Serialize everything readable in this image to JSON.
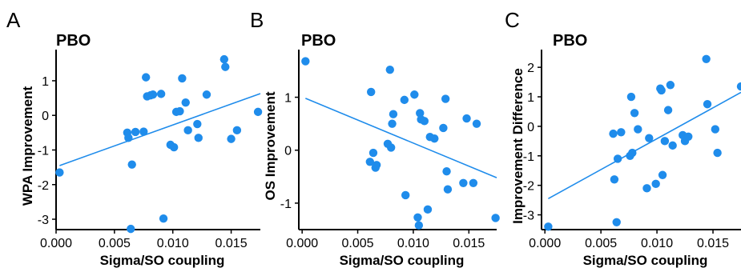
{
  "chart_data": [
    {
      "type": "scatter",
      "panel_label": "A",
      "title": "PBO",
      "xlabel": "Sigma/SO coupling",
      "ylabel": "WPA Improvement",
      "xlim": [
        0.0,
        0.0175
      ],
      "ylim": [
        -3.3,
        1.9
      ],
      "xticks": [
        0.0,
        0.005,
        0.01,
        0.015
      ],
      "xtick_labels": [
        "0.000",
        "0.005",
        "0.010",
        "0.015"
      ],
      "yticks": [
        -3,
        -2,
        -1,
        0,
        1
      ],
      "ytick_labels": [
        "-3",
        "-2",
        "-1",
        "0",
        "1"
      ],
      "color": "#1f8ceb",
      "grid": false,
      "points": [
        [
          0.0003,
          -1.65
        ],
        [
          0.0061,
          -0.5
        ],
        [
          0.0062,
          -0.65
        ],
        [
          0.0064,
          -3.28
        ],
        [
          0.0065,
          -1.42
        ],
        [
          0.0068,
          -0.48
        ],
        [
          0.0075,
          -0.47
        ],
        [
          0.0077,
          1.1
        ],
        [
          0.0078,
          0.55
        ],
        [
          0.0081,
          0.58
        ],
        [
          0.0083,
          0.6
        ],
        [
          0.009,
          0.62
        ],
        [
          0.0092,
          -2.98
        ],
        [
          0.0098,
          -0.85
        ],
        [
          0.0101,
          -0.92
        ],
        [
          0.0103,
          0.1
        ],
        [
          0.0106,
          0.12
        ],
        [
          0.0108,
          1.07
        ],
        [
          0.0111,
          0.37
        ],
        [
          0.0113,
          -0.43
        ],
        [
          0.0121,
          -0.25
        ],
        [
          0.0122,
          -0.65
        ],
        [
          0.0129,
          0.6
        ],
        [
          0.0144,
          1.62
        ],
        [
          0.0145,
          1.4
        ],
        [
          0.015,
          -0.68
        ],
        [
          0.0155,
          -0.43
        ],
        [
          0.0173,
          0.1
        ]
      ],
      "fit_line": [
        [
          0.0003,
          -1.45
        ],
        [
          0.0175,
          0.63
        ]
      ]
    },
    {
      "type": "scatter",
      "panel_label": "B",
      "title": "PBO",
      "xlabel": "Sigma/SO coupling",
      "ylabel": "OS Improvement",
      "xlim": [
        -0.0003,
        0.0175
      ],
      "ylim": [
        -1.5,
        1.9
      ],
      "xticks": [
        0.0,
        0.005,
        0.01,
        0.015
      ],
      "xtick_labels": [
        "0.000",
        "0.005",
        "0.010",
        "0.015"
      ],
      "yticks": [
        -1,
        0,
        1
      ],
      "ytick_labels": [
        "-1",
        "0",
        "1"
      ],
      "color": "#1f8ceb",
      "grid": false,
      "points": [
        [
          0.0003,
          1.68
        ],
        [
          0.0061,
          -0.22
        ],
        [
          0.0062,
          1.1
        ],
        [
          0.0064,
          -0.05
        ],
        [
          0.0066,
          -0.33
        ],
        [
          0.0067,
          -0.28
        ],
        [
          0.0077,
          0.12
        ],
        [
          0.0079,
          1.52
        ],
        [
          0.008,
          0.05
        ],
        [
          0.0081,
          0.5
        ],
        [
          0.0082,
          0.68
        ],
        [
          0.0092,
          0.95
        ],
        [
          0.0093,
          -0.85
        ],
        [
          0.0101,
          1.05
        ],
        [
          0.0104,
          -1.27
        ],
        [
          0.0105,
          -1.42
        ],
        [
          0.0106,
          0.7
        ],
        [
          0.0107,
          0.58
        ],
        [
          0.011,
          0.55
        ],
        [
          0.0113,
          -1.12
        ],
        [
          0.0115,
          0.25
        ],
        [
          0.0119,
          0.22
        ],
        [
          0.0127,
          0.42
        ],
        [
          0.0129,
          0.97
        ],
        [
          0.013,
          -0.4
        ],
        [
          0.0131,
          -0.74
        ],
        [
          0.0145,
          -0.62
        ],
        [
          0.0148,
          0.6
        ],
        [
          0.0154,
          -0.62
        ],
        [
          0.0157,
          0.5
        ],
        [
          0.0174,
          -1.28
        ]
      ],
      "fit_line": [
        [
          0.0003,
          0.98
        ],
        [
          0.0175,
          -0.52
        ]
      ]
    },
    {
      "type": "scatter",
      "panel_label": "C",
      "title": "PBO",
      "xlabel": "Sigma/SO coupling",
      "ylabel": "Improvement Difference",
      "xlim": [
        -0.0003,
        0.0175
      ],
      "ylim": [
        -3.5,
        2.6
      ],
      "xticks": [
        0.0,
        0.005,
        0.01,
        0.015
      ],
      "xtick_labels": [
        "0.000",
        "0.005",
        "0.010",
        "0.015"
      ],
      "yticks": [
        -3,
        -2,
        -1,
        0,
        1,
        2
      ],
      "ytick_labels": [
        "-3",
        "-2",
        "-1",
        "0",
        "1",
        "2"
      ],
      "color": "#1f8ceb",
      "grid": false,
      "points": [
        [
          0.0003,
          -3.4
        ],
        [
          0.0061,
          -0.25
        ],
        [
          0.0062,
          -1.8
        ],
        [
          0.0064,
          -3.25
        ],
        [
          0.0065,
          -1.1
        ],
        [
          0.0068,
          -0.2
        ],
        [
          0.0076,
          -1.0
        ],
        [
          0.0077,
          1.0
        ],
        [
          0.0078,
          -0.9
        ],
        [
          0.008,
          0.45
        ],
        [
          0.0083,
          -0.1
        ],
        [
          0.0091,
          -2.1
        ],
        [
          0.0093,
          -0.4
        ],
        [
          0.0099,
          -1.95
        ],
        [
          0.0103,
          1.28
        ],
        [
          0.0104,
          1.22
        ],
        [
          0.0105,
          -1.65
        ],
        [
          0.0107,
          -0.5
        ],
        [
          0.011,
          0.55
        ],
        [
          0.0112,
          1.4
        ],
        [
          0.0114,
          -0.65
        ],
        [
          0.0123,
          -0.3
        ],
        [
          0.0125,
          -0.5
        ],
        [
          0.0128,
          -0.35
        ],
        [
          0.0144,
          2.28
        ],
        [
          0.0145,
          0.75
        ],
        [
          0.0152,
          -0.1
        ],
        [
          0.0154,
          -0.9
        ],
        [
          0.0175,
          1.35
        ]
      ],
      "fit_line": [
        [
          0.0003,
          -2.45
        ],
        [
          0.0175,
          1.15
        ]
      ]
    }
  ]
}
